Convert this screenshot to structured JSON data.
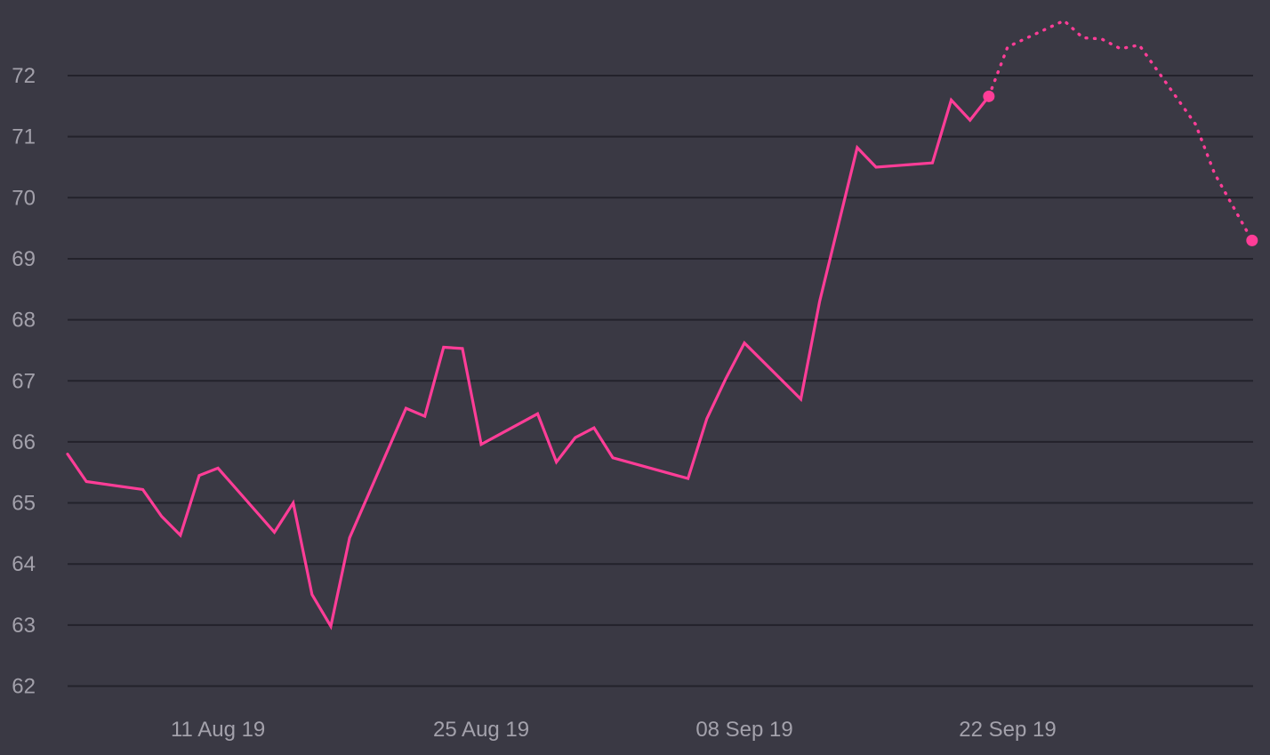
{
  "chart_data": {
    "type": "line",
    "title": "",
    "xlabel": "",
    "ylabel": "",
    "ylim": [
      62,
      72.7
    ],
    "y_ticks": [
      62,
      63,
      64,
      65,
      66,
      67,
      68,
      69,
      70,
      71,
      72
    ],
    "x_ticks": [
      {
        "date": "2019-08-11",
        "label": "11 Aug 19"
      },
      {
        "date": "2019-08-25",
        "label": "25 Aug 19"
      },
      {
        "date": "2019-09-08",
        "label": "08 Sep 19"
      },
      {
        "date": "2019-09-22",
        "label": "22 Sep 19"
      }
    ],
    "x_range": [
      "2019-08-03",
      "2019-10-05"
    ],
    "grid": "horizontal",
    "line_color": "#ff3d97",
    "background_color": "#3a3944",
    "series": [
      {
        "style": "solid",
        "points": [
          [
            "2019-08-03",
            65.8
          ],
          [
            "2019-08-04",
            65.35
          ],
          [
            "2019-08-07",
            65.22
          ],
          [
            "2019-08-08",
            64.78
          ],
          [
            "2019-08-09",
            64.47
          ],
          [
            "2019-08-10",
            65.45
          ],
          [
            "2019-08-11",
            65.57
          ],
          [
            "2019-08-14",
            64.52
          ],
          [
            "2019-08-15",
            65.0
          ],
          [
            "2019-08-16",
            63.5
          ],
          [
            "2019-08-17",
            62.98
          ],
          [
            "2019-08-18",
            64.43
          ],
          [
            "2019-08-21",
            66.55
          ],
          [
            "2019-08-22",
            66.42
          ],
          [
            "2019-08-23",
            67.55
          ],
          [
            "2019-08-24",
            67.53
          ],
          [
            "2019-08-25",
            65.96
          ],
          [
            "2019-08-28",
            66.46
          ],
          [
            "2019-08-29",
            65.67
          ],
          [
            "2019-08-30",
            66.07
          ],
          [
            "2019-08-31",
            66.23
          ],
          [
            "2019-09-01",
            65.74
          ],
          [
            "2019-09-05",
            65.4
          ],
          [
            "2019-09-06",
            66.38
          ],
          [
            "2019-09-07",
            67.03
          ],
          [
            "2019-09-08",
            67.62
          ],
          [
            "2019-09-11",
            66.7
          ],
          [
            "2019-09-12",
            68.3
          ],
          [
            "2019-09-14",
            70.82
          ],
          [
            "2019-09-15",
            70.5
          ],
          [
            "2019-09-18",
            70.57
          ],
          [
            "2019-09-19",
            71.6
          ],
          [
            "2019-09-20",
            71.27
          ],
          [
            "2019-09-21",
            71.66
          ]
        ]
      },
      {
        "style": "dotted",
        "points": [
          [
            "2019-09-21",
            71.66
          ],
          [
            "2019-09-22",
            72.47
          ],
          [
            "2019-09-25",
            72.9
          ],
          [
            "2019-09-26",
            72.62
          ],
          [
            "2019-09-27",
            72.6
          ],
          [
            "2019-09-28",
            72.44
          ],
          [
            "2019-09-29",
            72.5
          ],
          [
            "2019-10-02",
            71.2
          ],
          [
            "2019-10-03",
            70.4
          ],
          [
            "2019-10-05",
            69.3
          ]
        ]
      }
    ],
    "markers": [
      {
        "date": "2019-09-21",
        "value": 71.66
      },
      {
        "date": "2019-10-05",
        "value": 69.3
      }
    ]
  }
}
